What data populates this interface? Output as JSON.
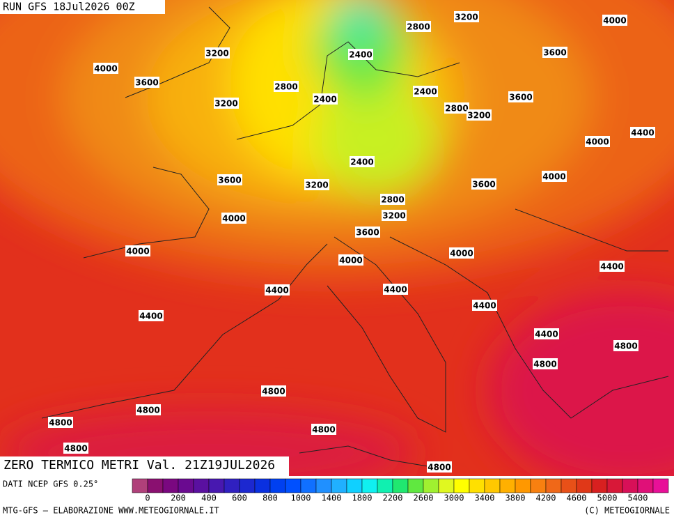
{
  "header": {
    "run": "RUN GFS 18Jul2026 00Z"
  },
  "title": "ZERO TERMICO METRI Val. 21Z19JUL2026",
  "contour_labels": [
    "4000",
    "3200",
    "2800",
    "3600",
    "3200",
    "2400",
    "4000",
    "3600",
    "2800",
    "2400",
    "2400",
    "3600",
    "3200",
    "2800",
    "3200",
    "4400",
    "4000",
    "2400",
    "4000",
    "3600",
    "3200",
    "3600",
    "2800",
    "3200",
    "4000",
    "3600",
    "4000",
    "4000",
    "4000",
    "4400",
    "4400",
    "4400",
    "4400",
    "4400",
    "4400",
    "4800",
    "4800",
    "4800",
    "4800",
    "4800",
    "4800",
    "4800",
    "4800"
  ],
  "colorbar": {
    "colors": [
      "#b0407a",
      "#8a1070",
      "#7a0880",
      "#6a0a90",
      "#5a10a0",
      "#4818b0",
      "#3020c0",
      "#1c28d0",
      "#0a30e0",
      "#0040f0",
      "#0050ff",
      "#1070ff",
      "#2090ff",
      "#20b0ff",
      "#10d0ff",
      "#10f0f0",
      "#10f0b0",
      "#20e870",
      "#60e840",
      "#a0f030",
      "#e0f820",
      "#ffff00",
      "#ffe000",
      "#ffc800",
      "#ffb000",
      "#ff9800",
      "#f88010",
      "#f06818",
      "#e85018",
      "#e03818",
      "#d82020",
      "#d81838",
      "#d81058",
      "#e01078",
      "#e81098"
    ],
    "labels": [
      "0",
      "200",
      "400",
      "600",
      "800",
      "1000",
      "1400",
      "1800",
      "2200",
      "2600",
      "3000",
      "3400",
      "3800",
      "4200",
      "4600",
      "5000",
      "5400"
    ]
  },
  "footer": {
    "source": "DATI NCEP GFS 0.25°",
    "credit": "MTG-GFS — ELABORAZIONE WWW.METEOGIORNALE.IT",
    "copyright": "(C) METEOGIORNALE"
  }
}
